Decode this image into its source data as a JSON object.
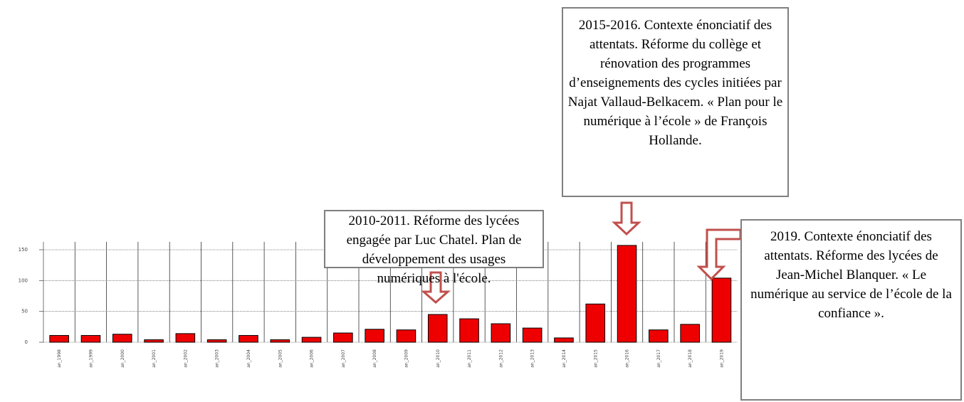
{
  "chart_data": {
    "type": "bar",
    "categories": [
      "an_1998",
      "an_1999",
      "an_2000",
      "an_2001",
      "an_2002",
      "an_2003",
      "an_2004",
      "an_2005",
      "an_2006",
      "an_2007",
      "an_2008",
      "an_2009",
      "an_2010",
      "an_2011",
      "an_2012",
      "an_2013",
      "an_2014",
      "an_2015",
      "an_2016",
      "an_2017",
      "an_2018",
      "an_2019"
    ],
    "values": [
      11,
      11,
      13,
      4,
      14,
      4,
      11,
      4,
      8,
      15,
      21,
      20,
      45,
      38,
      30,
      23,
      7,
      62,
      157,
      20,
      29,
      104
    ],
    "color": "#ee0000",
    "ylim": [
      0,
      157
    ],
    "yticks": [
      0,
      50,
      100,
      150
    ],
    "grid": true,
    "annotations": [
      "2010-2011. Réforme des lycées engagée par Luc Chatel. Plan de développement des usages numériques à l'école.",
      "2015-2016. Contexte énonciatif des attentats. Réforme du collège et rénovation des programmes d’enseignements des cycles initiées par Najat Vallaud-Belkacem. « Plan pour le numérique à l’école » de François Hollande.",
      "2019. Contexte énonciatif des attentats. Réforme des lycées de Jean-Michel Blanquer. « Le numérique au service de l’école de la confiance »."
    ]
  }
}
